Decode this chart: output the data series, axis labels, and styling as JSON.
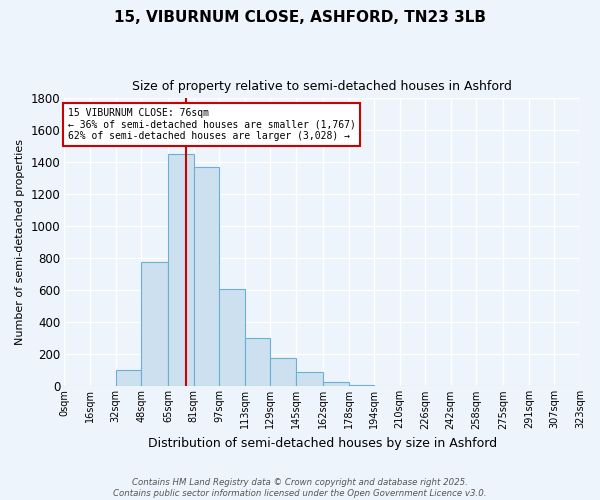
{
  "title1": "15, VIBURNUM CLOSE, ASHFORD, TN23 3LB",
  "title2": "Size of property relative to semi-detached houses in Ashford",
  "xlabel": "Distribution of semi-detached houses by size in Ashford",
  "ylabel": "Number of semi-detached properties",
  "bin_edges": [
    0,
    16,
    32,
    48,
    65,
    81,
    97,
    113,
    129,
    145,
    162,
    178,
    194,
    210,
    226,
    242,
    258,
    275,
    291,
    307,
    323
  ],
  "bin_labels": [
    "0sqm",
    "16sqm",
    "32sqm",
    "48sqm",
    "65sqm",
    "81sqm",
    "97sqm",
    "113sqm",
    "129sqm",
    "145sqm",
    "162sqm",
    "178sqm",
    "194sqm",
    "210sqm",
    "226sqm",
    "242sqm",
    "258sqm",
    "275sqm",
    "291sqm",
    "307sqm",
    "323sqm"
  ],
  "bar_heights": [
    2,
    2,
    100,
    780,
    1450,
    1370,
    610,
    300,
    180,
    90,
    25,
    10,
    5,
    2,
    2,
    2,
    2,
    5,
    2,
    2
  ],
  "bar_color": "#cce0f0",
  "bar_edge_color": "#6aafd6",
  "property_sqm": 76,
  "red_line_color": "#cc0000",
  "annotation_text": "15 VIBURNUM CLOSE: 76sqm\n← 36% of semi-detached houses are smaller (1,767)\n62% of semi-detached houses are larger (3,028) →",
  "annotation_box_color": "#ffffff",
  "annotation_box_edge": "#cc0000",
  "ylim": [
    0,
    1800
  ],
  "yticks": [
    0,
    200,
    400,
    600,
    800,
    1000,
    1200,
    1400,
    1600,
    1800
  ],
  "footer_text": "Contains HM Land Registry data © Crown copyright and database right 2025.\nContains public sector information licensed under the Open Government Licence v3.0.",
  "bg_color": "#eef4fc",
  "grid_color": "#ffffff"
}
